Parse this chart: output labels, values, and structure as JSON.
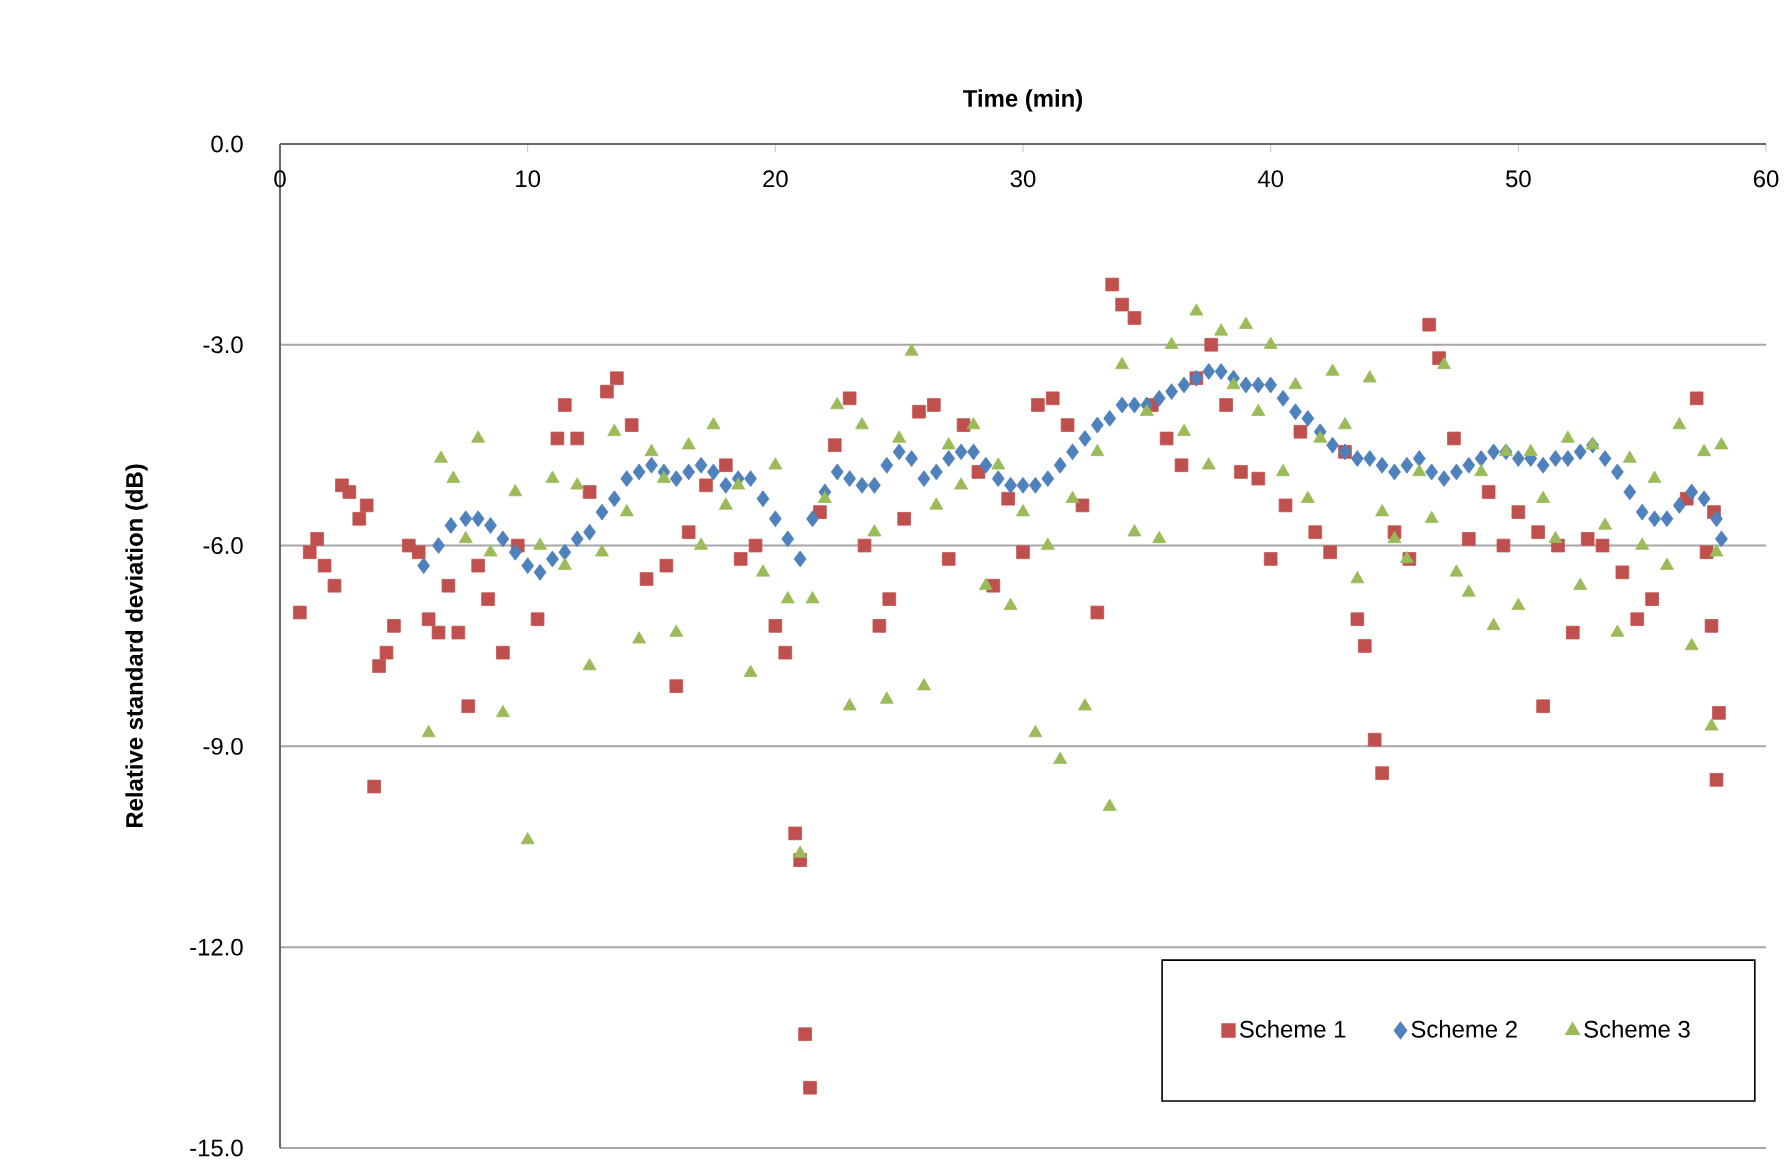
{
  "chart_data": {
    "type": "scatter",
    "xlabel": "Time (min)",
    "ylabel": "Relative standard deviation (dB)",
    "xlim": [
      0,
      60
    ],
    "xticks": [
      0,
      10,
      20,
      30,
      40,
      50,
      60
    ],
    "ylim": [
      -15,
      0
    ],
    "yticks": [
      {
        "value": -15,
        "label": "-15.0"
      },
      {
        "value": -12,
        "label": "-12.0"
      },
      {
        "value": -9,
        "label": "-9.0"
      },
      {
        "value": -6,
        "label": "-6.0"
      },
      {
        "value": -3,
        "label": "-3.0"
      },
      {
        "value": 0,
        "label": "0.0"
      }
    ],
    "grid": "y",
    "legend": "bottom right",
    "series": [
      {
        "name": "Scheme 1",
        "color": "#c0504d",
        "marker": "square",
        "x": [
          0.8,
          1.2,
          1.5,
          1.8,
          2.2,
          2.5,
          2.8,
          3.2,
          3.5,
          3.8,
          4,
          4.3,
          4.6,
          5.2,
          5.6,
          6,
          6.4,
          6.8,
          7.2,
          7.6,
          8,
          8.4,
          9,
          9.6,
          10.4,
          11.2,
          11.5,
          12,
          12.5,
          13.2,
          13.6,
          14.2,
          14.8,
          15.6,
          16,
          16.5,
          17.2,
          18,
          18.6,
          19.2,
          20,
          20.4,
          20.8,
          21,
          21.2,
          21.4,
          21.8,
          22.4,
          23,
          23.6,
          24.2,
          24.6,
          25.2,
          25.8,
          26.4,
          27,
          27.6,
          28.2,
          28.8,
          29.4,
          30,
          30.6,
          31.2,
          31.8,
          32.4,
          33,
          33.6,
          34,
          34.5,
          35.2,
          35.8,
          36.4,
          37,
          37.6,
          38.2,
          38.8,
          39.5,
          40,
          40.6,
          41.2,
          41.8,
          42.4,
          43,
          43.5,
          43.8,
          44.2,
          44.5,
          45,
          45.6,
          46.4,
          46.8,
          47.4,
          48,
          48.8,
          49.4,
          50,
          50.8,
          51,
          51.6,
          52.2,
          52.8,
          53.4,
          54.2,
          54.8,
          55.4,
          56.8,
          57.2,
          57.6,
          57.8,
          58,
          58.1,
          57.9
        ],
        "values": [
          -7.0,
          -6.1,
          -5.9,
          -6.3,
          -6.6,
          -5.1,
          -5.2,
          -5.6,
          -5.4,
          -9.6,
          -7.8,
          -7.6,
          -7.2,
          -6.0,
          -6.1,
          -7.1,
          -7.3,
          -6.6,
          -7.3,
          -8.4,
          -6.3,
          -6.8,
          -7.6,
          -6.0,
          -7.1,
          -4.4,
          -3.9,
          -4.4,
          -5.2,
          -3.7,
          -3.5,
          -4.2,
          -6.5,
          -6.3,
          -8.1,
          -5.8,
          -5.1,
          -4.8,
          -6.2,
          -6.0,
          -7.2,
          -7.6,
          -10.3,
          -10.7,
          -13.3,
          -14.1,
          -5.5,
          -4.5,
          -3.8,
          -6.0,
          -7.2,
          -6.8,
          -5.6,
          -4.0,
          -3.9,
          -6.2,
          -4.2,
          -4.9,
          -6.6,
          -5.3,
          -6.1,
          -3.9,
          -3.8,
          -4.2,
          -5.4,
          -7.0,
          -2.1,
          -2.4,
          -2.6,
          -3.9,
          -4.4,
          -4.8,
          -3.5,
          -3.0,
          -3.9,
          -4.9,
          -5.0,
          -6.2,
          -5.4,
          -4.3,
          -5.8,
          -6.1,
          -4.6,
          -7.1,
          -7.5,
          -8.9,
          -9.4,
          -5.8,
          -6.2,
          -2.7,
          -3.2,
          -4.4,
          -5.9,
          -5.2,
          -6.0,
          -5.5,
          -5.8,
          -8.4,
          -6.0,
          -7.3,
          -5.9,
          -6.0,
          -6.4,
          -7.1,
          -6.8,
          -5.3,
          -3.8,
          -6.1,
          -7.2,
          -9.5,
          -8.5,
          -5.5
        ]
      },
      {
        "name": "Scheme 2",
        "color": "#4f81bd",
        "marker": "diamond",
        "x": [
          5.8,
          6.4,
          6.9,
          7.5,
          8,
          8.5,
          9,
          9.5,
          10,
          10.5,
          11,
          11.5,
          12,
          12.5,
          13,
          13.5,
          14,
          14.5,
          15,
          15.5,
          16,
          16.5,
          17,
          17.5,
          18,
          18.5,
          19,
          19.5,
          20,
          20.5,
          21,
          21.5,
          22,
          22.5,
          23,
          23.5,
          24,
          24.5,
          25,
          25.5,
          26,
          26.5,
          27,
          27.5,
          28,
          28.5,
          29,
          29.5,
          30,
          30.5,
          31,
          31.5,
          32,
          32.5,
          33,
          33.5,
          34,
          34.5,
          35,
          35.5,
          36,
          36.5,
          37,
          37.5,
          38,
          38.5,
          39,
          39.5,
          40,
          40.5,
          41,
          41.5,
          42,
          42.5,
          43,
          43.5,
          44,
          44.5,
          45,
          45.5,
          46,
          46.5,
          47,
          47.5,
          48,
          48.5,
          49,
          49.5,
          50,
          50.5,
          51,
          51.5,
          52,
          52.5,
          53,
          53.5,
          54,
          54.5,
          55,
          55.5,
          56,
          56.5,
          57,
          57.5,
          58,
          58.2
        ],
        "values": [
          -6.3,
          -6.0,
          -5.7,
          -5.6,
          -5.6,
          -5.7,
          -5.9,
          -6.1,
          -6.3,
          -6.4,
          -6.2,
          -6.1,
          -5.9,
          -5.8,
          -5.5,
          -5.3,
          -5.0,
          -4.9,
          -4.8,
          -4.9,
          -5.0,
          -4.9,
          -4.8,
          -4.9,
          -5.1,
          -5.0,
          -5.0,
          -5.3,
          -5.6,
          -5.9,
          -6.2,
          -5.6,
          -5.2,
          -4.9,
          -5.0,
          -5.1,
          -5.1,
          -4.8,
          -4.6,
          -4.7,
          -5.0,
          -4.9,
          -4.7,
          -4.6,
          -4.6,
          -4.8,
          -5.0,
          -5.1,
          -5.1,
          -5.1,
          -5.0,
          -4.8,
          -4.6,
          -4.4,
          -4.2,
          -4.1,
          -3.9,
          -3.9,
          -3.9,
          -3.8,
          -3.7,
          -3.6,
          -3.5,
          -3.4,
          -3.4,
          -3.5,
          -3.6,
          -3.6,
          -3.6,
          -3.8,
          -4.0,
          -4.1,
          -4.3,
          -4.5,
          -4.6,
          -4.7,
          -4.7,
          -4.8,
          -4.9,
          -4.8,
          -4.7,
          -4.9,
          -5.0,
          -4.9,
          -4.8,
          -4.7,
          -4.6,
          -4.6,
          -4.7,
          -4.7,
          -4.8,
          -4.7,
          -4.7,
          -4.6,
          -4.5,
          -4.7,
          -4.9,
          -5.2,
          -5.5,
          -5.6,
          -5.6,
          -5.4,
          -5.2,
          -5.3,
          -5.6,
          -5.9
        ]
      },
      {
        "name": "Scheme 3",
        "color": "#9bbb59",
        "marker": "triangle",
        "x": [
          6,
          6.5,
          7,
          7.5,
          8,
          8.5,
          9,
          9.5,
          10,
          10.5,
          11,
          11.5,
          12,
          12.5,
          13,
          13.5,
          14,
          14.5,
          15,
          15.5,
          16,
          16.5,
          17,
          17.5,
          18,
          18.5,
          19,
          19.5,
          20,
          20.5,
          21,
          21.5,
          22,
          22.5,
          23,
          23.5,
          24,
          24.5,
          25,
          25.5,
          26,
          26.5,
          27,
          27.5,
          28,
          28.5,
          29,
          29.5,
          30,
          30.5,
          31,
          31.5,
          32,
          32.5,
          33,
          33.5,
          34,
          34.5,
          35,
          35.5,
          36,
          36.5,
          37,
          37.5,
          38,
          38.5,
          39,
          39.5,
          40,
          40.5,
          41,
          41.5,
          42,
          42.5,
          43,
          43.5,
          44,
          44.5,
          45,
          45.5,
          46,
          46.5,
          47,
          47.5,
          48,
          48.5,
          49,
          49.5,
          50,
          50.5,
          51,
          51.5,
          52,
          52.5,
          53,
          53.5,
          54,
          54.5,
          55,
          55.5,
          56,
          56.5,
          57,
          57.5,
          57.8,
          58.2,
          58
        ],
        "values": [
          -8.8,
          -4.7,
          -5.0,
          -5.9,
          -4.4,
          -6.1,
          -8.5,
          -5.2,
          -10.4,
          -6.0,
          -5.0,
          -6.3,
          -5.1,
          -7.8,
          -6.1,
          -4.3,
          -5.5,
          -7.4,
          -4.6,
          -5.0,
          -7.3,
          -4.5,
          -6.0,
          -4.2,
          -5.4,
          -5.1,
          -7.9,
          -6.4,
          -4.8,
          -6.8,
          -10.6,
          -6.8,
          -5.3,
          -3.9,
          -8.4,
          -4.2,
          -5.8,
          -8.3,
          -4.4,
          -3.1,
          -8.1,
          -5.4,
          -4.5,
          -5.1,
          -4.2,
          -6.6,
          -4.8,
          -6.9,
          -5.5,
          -8.8,
          -6.0,
          -9.2,
          -5.3,
          -8.4,
          -4.6,
          -9.9,
          -3.3,
          -5.8,
          -4.0,
          -5.9,
          -3.0,
          -4.3,
          -2.5,
          -4.8,
          -2.8,
          -3.6,
          -2.7,
          -4.0,
          -3.0,
          -4.9,
          -3.6,
          -5.3,
          -4.4,
          -3.4,
          -4.2,
          -6.5,
          -3.5,
          -5.5,
          -5.9,
          -6.2,
          -4.9,
          -5.6,
          -3.3,
          -6.4,
          -6.7,
          -4.9,
          -7.2,
          -4.6,
          -6.9,
          -4.6,
          -5.3,
          -5.9,
          -4.4,
          -6.6,
          -4.5,
          -5.7,
          -7.3,
          -4.7,
          -6.0,
          -5.0,
          -6.3,
          -4.2,
          -7.5,
          -4.6,
          -8.7,
          -4.5,
          -6.1
        ]
      }
    ]
  }
}
